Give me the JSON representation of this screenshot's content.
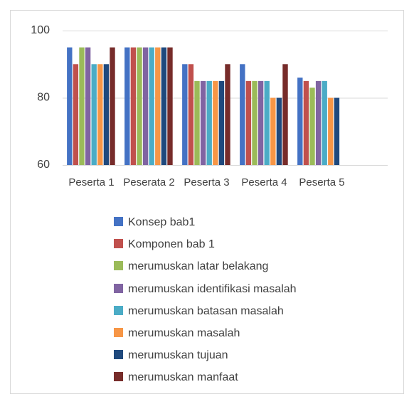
{
  "chart_data": {
    "type": "bar",
    "categories": [
      "Peserta 1",
      "Peserata 2",
      "Peserta 3",
      "Peserta 4",
      "Peserta 5"
    ],
    "series": [
      {
        "name": "Konsep bab1",
        "color": "#4472c4",
        "values": [
          95,
          95,
          90,
          90,
          86
        ]
      },
      {
        "name": "Komponen bab 1",
        "color": "#c0504d",
        "values": [
          90,
          95,
          90,
          85,
          85
        ]
      },
      {
        "name": "merumuskan latar belakang",
        "color": "#9bbb59",
        "values": [
          95,
          95,
          85,
          85,
          83
        ]
      },
      {
        "name": "merumuskan identifikasi masalah",
        "color": "#8064a2",
        "values": [
          95,
          95,
          85,
          85,
          85
        ]
      },
      {
        "name": "merumuskan batasan masalah",
        "color": "#4bacc6",
        "values": [
          90,
          95,
          85,
          85,
          85
        ]
      },
      {
        "name": "merumuskan masalah",
        "color": "#f79646",
        "values": [
          90,
          95,
          85,
          80,
          80
        ]
      },
      {
        "name": "merumuskan tujuan",
        "color": "#1f497d",
        "values": [
          90,
          95,
          85,
          80,
          80
        ]
      },
      {
        "name": "merumuskan manfaat",
        "color": "#772c2a",
        "values": [
          95,
          95,
          90,
          90,
          null
        ]
      }
    ],
    "ylim": [
      60,
      100
    ],
    "yticks": [
      60,
      80,
      100
    ],
    "grid": true,
    "legend": "bottom"
  }
}
